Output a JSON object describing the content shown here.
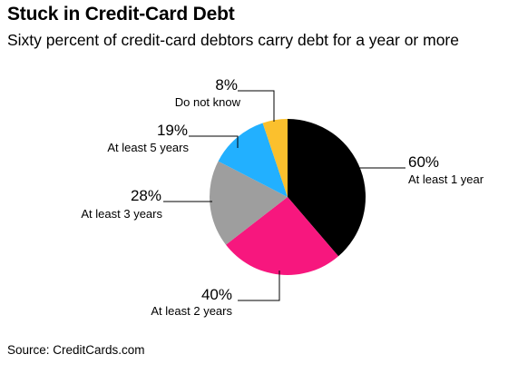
{
  "header": {
    "title": "Stuck in Credit-Card Debt",
    "subtitle": "Sixty percent of credit-card debtors carry debt for a year or more"
  },
  "footer": {
    "source": "Source: CreditCards.com"
  },
  "chart_data": {
    "type": "pie",
    "start": "top",
    "direction": "clockwise",
    "slices": [
      {
        "label": "At least 1 year",
        "value_label": "60%",
        "value": 60,
        "color": "#000000"
      },
      {
        "label": "At least 2 years",
        "value_label": "40%",
        "value": 40,
        "color": "#f7177e"
      },
      {
        "label": "At least 3 years",
        "value_label": "28%",
        "value": 28,
        "color": "#9e9e9e"
      },
      {
        "label": "At least 5 years",
        "value_label": "19%",
        "value": 19,
        "color": "#22b0ff"
      },
      {
        "label": "Do not know",
        "value_label": "8%",
        "value": 8,
        "color": "#fbc02d"
      }
    ]
  }
}
